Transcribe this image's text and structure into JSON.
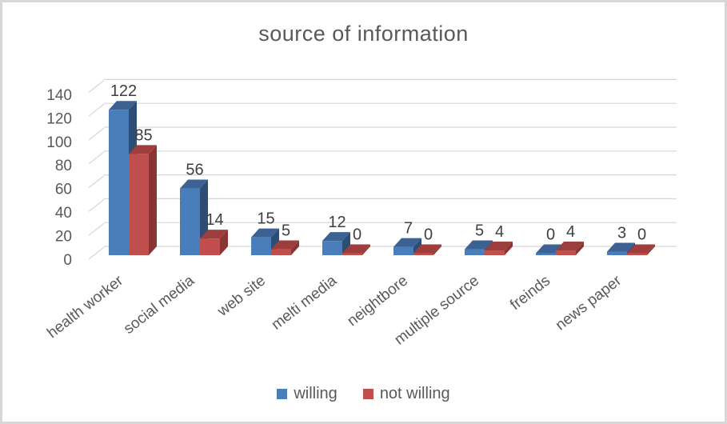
{
  "chart_data": {
    "type": "bar",
    "style": "3d-clustered-column",
    "title": "source of information",
    "categories": [
      "health worker",
      "social media",
      "web site",
      "melti media",
      "neightbore",
      "multiple source",
      "freinds",
      "news paper"
    ],
    "series": [
      {
        "name": "willing",
        "color": "#4a7ebb",
        "color_top": "#3c6294",
        "color_side": "#2e4d75",
        "values": [
          122,
          56,
          15,
          12,
          7,
          5,
          0,
          3
        ]
      },
      {
        "name": "not willing",
        "color": "#bf4e4c",
        "color_top": "#9e3e3c",
        "color_side": "#8a3534",
        "values": [
          85,
          14,
          5,
          0,
          0,
          4,
          4,
          0
        ]
      }
    ],
    "ylim": [
      0,
      140
    ],
    "yticks": [
      0,
      20,
      40,
      60,
      80,
      100,
      120,
      140
    ],
    "grid": true,
    "data_labels": true,
    "legend_position": "bottom",
    "gridline_color": "#d6d6d6",
    "axis_text_color": "#595959",
    "data_label_color": "#3f3f3f",
    "background_color": "#ffffff",
    "border_color": "#d7d7d7"
  }
}
